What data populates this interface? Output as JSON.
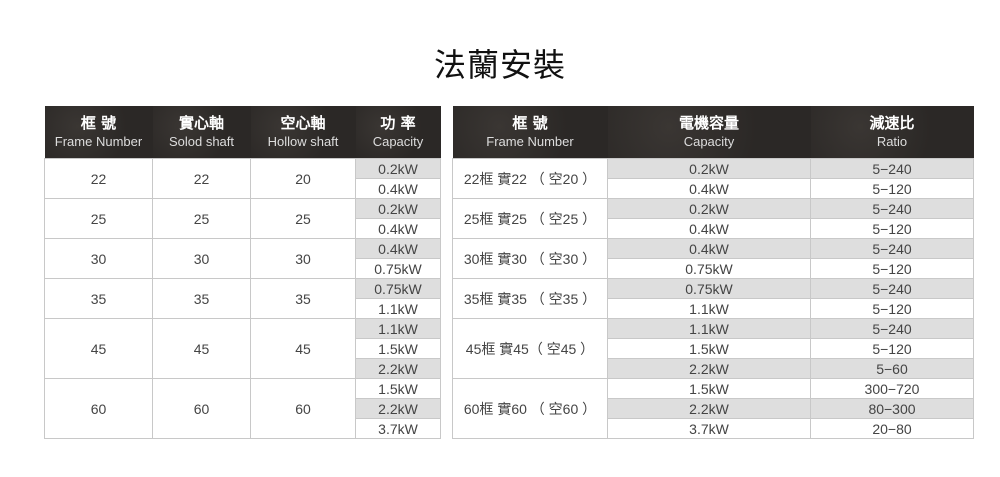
{
  "title": "法蘭安裝",
  "left_table": {
    "headers": [
      {
        "zh": "框 號",
        "en": "Frame Number"
      },
      {
        "zh": "實心軸",
        "en": "Solod shaft"
      },
      {
        "zh": "空心軸",
        "en": "Hollow shaft"
      },
      {
        "zh": "功 率",
        "en": "Capacity"
      }
    ],
    "groups": [
      {
        "frame": "22",
        "solid": "22",
        "hollow": "20",
        "capacities": [
          "0.2kW",
          "0.4kW"
        ]
      },
      {
        "frame": "25",
        "solid": "25",
        "hollow": "25",
        "capacities": [
          "0.2kW",
          "0.4kW"
        ]
      },
      {
        "frame": "30",
        "solid": "30",
        "hollow": "30",
        "capacities": [
          "0.4kW",
          "0.75kW"
        ]
      },
      {
        "frame": "35",
        "solid": "35",
        "hollow": "35",
        "capacities": [
          "0.75kW",
          "1.1kW"
        ]
      },
      {
        "frame": "45",
        "solid": "45",
        "hollow": "45",
        "capacities": [
          "1.1kW",
          "1.5kW",
          "2.2kW"
        ]
      },
      {
        "frame": "60",
        "solid": "60",
        "hollow": "60",
        "capacities": [
          "1.5kW",
          "2.2kW",
          "3.7kW"
        ]
      }
    ]
  },
  "right_table": {
    "headers": [
      {
        "zh": "框 號",
        "en": "Frame Number"
      },
      {
        "zh": "電機容量",
        "en": "Capacity"
      },
      {
        "zh": "減速比",
        "en": "Ratio"
      }
    ],
    "groups": [
      {
        "frame": "22框 實22 （ 空20 ）",
        "rows": [
          [
            "0.2kW",
            "5−240"
          ],
          [
            "0.4kW",
            "5−120"
          ]
        ]
      },
      {
        "frame": "25框 實25 （ 空25 ）",
        "rows": [
          [
            "0.2kW",
            "5−240"
          ],
          [
            "0.4kW",
            "5−120"
          ]
        ]
      },
      {
        "frame": "30框 實30 （ 空30 ）",
        "rows": [
          [
            "0.4kW",
            "5−240"
          ],
          [
            "0.75kW",
            "5−120"
          ]
        ]
      },
      {
        "frame": "35框 實35 （ 空35 ）",
        "rows": [
          [
            "0.75kW",
            "5−240"
          ],
          [
            "1.1kW",
            "5−120"
          ]
        ]
      },
      {
        "frame": "45框 實45（ 空45 ）",
        "rows": [
          [
            "1.1kW",
            "5−240"
          ],
          [
            "1.5kW",
            "5−120"
          ],
          [
            "2.2kW",
            "5−60"
          ]
        ]
      },
      {
        "frame": "60框 實60 （ 空60 ）",
        "rows": [
          [
            "1.5kW",
            "300−720"
          ],
          [
            "2.2kW",
            "80−300"
          ],
          [
            "3.7kW",
            "20−80"
          ]
        ]
      }
    ]
  },
  "colors": {
    "header_bg": "#2b2826",
    "alt_row": "#dedede",
    "border": "#c8c8c8"
  }
}
